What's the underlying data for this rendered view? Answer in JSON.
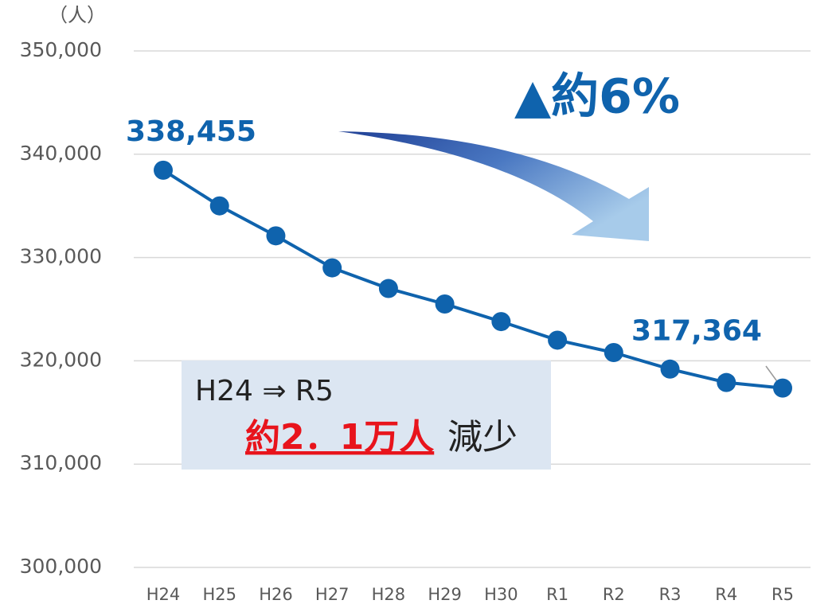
{
  "chart_data": {
    "type": "line",
    "y_unit": "（人）",
    "categories": [
      "H24",
      "H25",
      "H26",
      "H27",
      "H28",
      "H29",
      "H30",
      "R1",
      "R2",
      "R3",
      "R4",
      "R5"
    ],
    "series": [
      {
        "name": "人口",
        "color": "#0f63ad",
        "values": [
          338455,
          335000,
          332100,
          329000,
          327000,
          325500,
          323800,
          322000,
          320800,
          319200,
          317900,
          317364
        ],
        "value_labels": [
          "338,455",
          null,
          null,
          null,
          null,
          null,
          null,
          null,
          null,
          null,
          null,
          "317,364"
        ]
      }
    ],
    "ylim": [
      300000,
      350000
    ],
    "yticks": [
      {
        "value": 300000,
        "label": "300,000"
      },
      {
        "value": 310000,
        "label": "310,000"
      },
      {
        "value": 320000,
        "label": "320,000"
      },
      {
        "value": 330000,
        "label": "330,000"
      },
      {
        "value": 340000,
        "label": "340,000"
      },
      {
        "value": 350000,
        "label": "350,000"
      }
    ],
    "grid": true,
    "annotations": [
      "▲約6%",
      "H24 ⇒ R5",
      "約2．1万人",
      "減少"
    ]
  }
}
